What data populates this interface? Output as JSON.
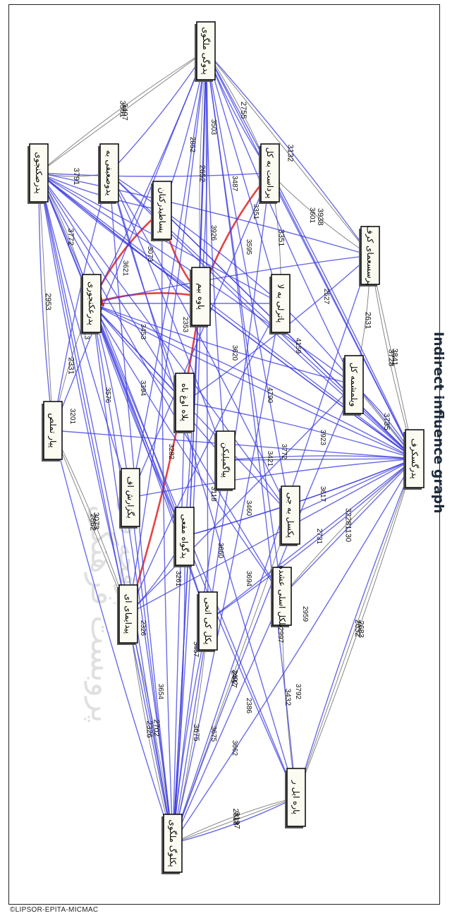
{
  "title": "Indirect influence graph",
  "copyright": "©LIPSOR-EPITA-MICMAC",
  "watermark_text": [
    "پروبست فرهنگی",
    "پرفحه فتی"
  ],
  "colors": {
    "strong_edge": "#3a3ae0",
    "weak_edge": "#6b6b6b",
    "critical_edge": "#e03030",
    "node_fill": "#fbfbf2",
    "node_border": "#111111"
  },
  "nodes": [
    {
      "id": "n1",
      "label": "پدوگی ملگوی"
    },
    {
      "id": "n2",
      "label": "پدرصکنجوی"
    },
    {
      "id": "n3",
      "label": "یدوصعبفی به"
    },
    {
      "id": "n4",
      "label": "پساطیدرکنان"
    },
    {
      "id": "n5",
      "label": "پرداست به کل"
    },
    {
      "id": "n6",
      "label": "پرسسعمای کرف"
    },
    {
      "id": "n7",
      "label": "پدرعکنجوری"
    },
    {
      "id": "n8",
      "label": "پاوه بیم"
    },
    {
      "id": "n9",
      "label": "پاترلی به لا"
    },
    {
      "id": "n10",
      "label": "پیار تملص"
    },
    {
      "id": "n11",
      "label": "پلاه اوغ باه"
    },
    {
      "id": "n12",
      "label": "ویلمشمه کل"
    },
    {
      "id": "n13",
      "label": "پدرگسکرف"
    },
    {
      "id": "n14",
      "label": "پیاگمیلیکن"
    },
    {
      "id": "n15",
      "label": "بگزارش اف"
    },
    {
      "id": "n16",
      "label": "پدگواه مفعی"
    },
    {
      "id": "n17",
      "label": "پکسل به جی"
    },
    {
      "id": "n18",
      "label": "بلکل اسلی عشده"
    },
    {
      "id": "n19",
      "label": "پیدایمای ای"
    },
    {
      "id": "n20",
      "label": "پکل کی اتحی"
    },
    {
      "id": "n21",
      "label": "پاره ایل ر"
    },
    {
      "id": "n22",
      "label": "پکلوگ ملگوی"
    }
  ],
  "edges": [
    {
      "from": "n2",
      "to": "n1",
      "label": "3501",
      "kind": "weak"
    },
    {
      "from": "n2",
      "to": "n1",
      "label": "3497",
      "kind": "weak"
    },
    {
      "from": "n2",
      "to": "n3",
      "label": "3791",
      "kind": "weak"
    },
    {
      "from": "n1",
      "to": "n5",
      "label": "2755",
      "kind": "weak"
    },
    {
      "from": "n1",
      "to": "n6",
      "label": "3132",
      "kind": "weak"
    },
    {
      "from": "n5",
      "to": "n6",
      "label": "3938",
      "kind": "weak"
    },
    {
      "from": "n5",
      "to": "n9",
      "label": "3351",
      "kind": "weak"
    },
    {
      "from": "n6",
      "to": "n13",
      "label": "3841",
      "kind": "weak"
    },
    {
      "from": "n6",
      "to": "n13",
      "label": "3728",
      "kind": "weak"
    },
    {
      "from": "n6",
      "to": "n12",
      "label": "2631",
      "kind": "weak"
    },
    {
      "from": "n12",
      "to": "n13",
      "label": "3735",
      "kind": "weak"
    },
    {
      "from": "n13",
      "to": "n18",
      "label": "32281130",
      "kind": "weak"
    },
    {
      "from": "n13",
      "to": "n21",
      "label": "2683",
      "kind": "weak"
    },
    {
      "from": "n13",
      "to": "n21",
      "label": "2632",
      "kind": "weak"
    },
    {
      "from": "n18",
      "to": "n21",
      "label": "3432",
      "kind": "weak"
    },
    {
      "from": "n2",
      "to": "n7",
      "label": "3772",
      "kind": "weak"
    },
    {
      "from": "n2",
      "to": "n10",
      "label": "2953",
      "kind": "weak"
    },
    {
      "from": "n7",
      "to": "n10",
      "label": "2331",
      "kind": "weak"
    },
    {
      "from": "n10",
      "to": "n19",
      "label": "3073",
      "kind": "weak"
    },
    {
      "from": "n10",
      "to": "n19",
      "label": "2862",
      "kind": "weak"
    },
    {
      "from": "n19",
      "to": "n22",
      "label": "2326",
      "kind": "weak"
    },
    {
      "from": "n19",
      "to": "n22",
      "label": "2702",
      "kind": "weak"
    },
    {
      "from": "n21",
      "to": "n22",
      "label": "3197",
      "kind": "weak"
    },
    {
      "from": "n21",
      "to": "n22",
      "label": "2818",
      "kind": "weak"
    },
    {
      "from": "n20",
      "to": "n22",
      "label": "3675",
      "kind": "weak"
    },
    {
      "from": "n17",
      "to": "n22",
      "label": "2417",
      "kind": "weak"
    },
    {
      "from": "n1",
      "to": "n8",
      "label": "2652",
      "kind": "weak"
    },
    {
      "from": "n5",
      "to": "n8",
      "label": "",
      "kind": "critical"
    },
    {
      "from": "n4",
      "to": "n8",
      "label": "",
      "kind": "critical"
    },
    {
      "from": "n8",
      "to": "n7",
      "label": "",
      "kind": "critical"
    },
    {
      "from": "n4",
      "to": "n7",
      "label": "",
      "kind": "critical"
    },
    {
      "from": "n19",
      "to": "n8",
      "label": "",
      "kind": "critical"
    },
    {
      "from": "n2",
      "to": "n8",
      "label": "",
      "kind": "strong"
    },
    {
      "from": "n3",
      "to": "n9",
      "label": "",
      "kind": "strong"
    },
    {
      "from": "n5",
      "to": "n15",
      "label": "",
      "kind": "strong"
    },
    {
      "from": "n6",
      "to": "n7",
      "label": "",
      "kind": "strong"
    },
    {
      "from": "n6",
      "to": "n11",
      "label": "",
      "kind": "strong"
    },
    {
      "from": "n12",
      "to": "n19",
      "label": "",
      "kind": "strong"
    },
    {
      "from": "n13",
      "to": "n7",
      "label": "",
      "kind": "strong"
    },
    {
      "from": "n13",
      "to": "n3",
      "label": "",
      "kind": "strong"
    },
    {
      "from": "n13",
      "to": "n4",
      "label": "",
      "kind": "strong"
    },
    {
      "from": "n13",
      "to": "n14",
      "label": "",
      "kind": "strong"
    },
    {
      "from": "n13",
      "to": "n16",
      "label": "",
      "kind": "strong"
    },
    {
      "from": "n13",
      "to": "n20",
      "label": "",
      "kind": "strong"
    },
    {
      "from": "n13",
      "to": "n1",
      "label": "",
      "kind": "strong"
    },
    {
      "from": "n13",
      "to": "n2",
      "label": "",
      "kind": "strong"
    },
    {
      "from": "n9",
      "to": "n7",
      "label": "",
      "kind": "strong"
    },
    {
      "from": "n9",
      "to": "n19",
      "label": "",
      "kind": "strong"
    },
    {
      "from": "n11",
      "to": "n3",
      "label": "",
      "kind": "strong"
    },
    {
      "from": "n11",
      "to": "n2",
      "label": "",
      "kind": "strong"
    },
    {
      "from": "n12",
      "to": "n2",
      "label": "",
      "kind": "strong"
    },
    {
      "from": "n12",
      "to": "n1",
      "label": "",
      "kind": "strong"
    },
    {
      "from": "n14",
      "to": "n7",
      "label": "",
      "kind": "strong"
    },
    {
      "from": "n14",
      "to": "n3",
      "label": "",
      "kind": "strong"
    },
    {
      "from": "n15",
      "to": "n2",
      "label": "",
      "kind": "strong"
    },
    {
      "from": "n15",
      "to": "n22",
      "label": "",
      "kind": "strong"
    },
    {
      "from": "n16",
      "to": "n1",
      "label": "",
      "kind": "strong"
    },
    {
      "from": "n16",
      "to": "n19",
      "label": "",
      "kind": "strong"
    },
    {
      "from": "n17",
      "to": "n2",
      "label": "",
      "kind": "strong"
    },
    {
      "from": "n17",
      "to": "n3",
      "label": "",
      "kind": "strong"
    },
    {
      "from": "n18",
      "to": "n7",
      "label": "",
      "kind": "strong"
    },
    {
      "from": "n18",
      "to": "n1",
      "label": "",
      "kind": "strong"
    },
    {
      "from": "n19",
      "to": "n1",
      "label": "",
      "kind": "strong"
    },
    {
      "from": "n19",
      "to": "n2",
      "label": "",
      "kind": "strong"
    },
    {
      "from": "n20",
      "to": "n1",
      "label": "",
      "kind": "strong"
    },
    {
      "from": "n20",
      "to": "n7",
      "label": "",
      "kind": "strong"
    },
    {
      "from": "n21",
      "to": "n7",
      "label": "",
      "kind": "strong"
    },
    {
      "from": "n21",
      "to": "n3",
      "label": "",
      "kind": "strong"
    },
    {
      "from": "n21",
      "to": "n1",
      "label": "",
      "kind": "strong"
    },
    {
      "from": "n22",
      "to": "n7",
      "label": "",
      "kind": "strong"
    },
    {
      "from": "n22",
      "to": "n2",
      "label": "",
      "kind": "strong"
    },
    {
      "from": "n22",
      "to": "n1",
      "label": "",
      "kind": "strong"
    },
    {
      "from": "n10",
      "to": "n3",
      "label": "",
      "kind": "strong"
    },
    {
      "from": "n10",
      "to": "n1",
      "label": "",
      "kind": "strong"
    },
    {
      "from": "n8",
      "to": "n1",
      "label": "",
      "kind": "strong"
    },
    {
      "from": "n8",
      "to": "n22",
      "label": "",
      "kind": "strong"
    },
    {
      "from": "n8",
      "to": "n13",
      "label": "",
      "kind": "strong"
    },
    {
      "from": "n7",
      "to": "n13",
      "label": "",
      "kind": "strong"
    },
    {
      "from": "n7",
      "to": "n22",
      "label": "",
      "kind": "strong"
    },
    {
      "from": "n3",
      "to": "n13",
      "label": "",
      "kind": "strong"
    },
    {
      "from": "n3",
      "to": "n22",
      "label": "",
      "kind": "strong"
    },
    {
      "from": "n1",
      "to": "n22",
      "label": "",
      "kind": "strong"
    },
    {
      "from": "n1",
      "to": "n13",
      "label": "",
      "kind": "strong"
    },
    {
      "from": "n2",
      "to": "n13",
      "label": "",
      "kind": "strong"
    },
    {
      "from": "n2",
      "to": "n22",
      "label": "",
      "kind": "strong"
    },
    {
      "from": "n4",
      "to": "n13",
      "label": "",
      "kind": "strong"
    },
    {
      "from": "n4",
      "to": "n22",
      "label": "",
      "kind": "strong"
    },
    {
      "from": "n5",
      "to": "n22",
      "label": "",
      "kind": "strong"
    },
    {
      "from": "n6",
      "to": "n22",
      "label": "",
      "kind": "strong"
    },
    {
      "from": "n6",
      "to": "n1",
      "label": "",
      "kind": "strong"
    },
    {
      "from": "n9",
      "to": "n22",
      "label": "",
      "kind": "strong"
    },
    {
      "from": "n11",
      "to": "n22",
      "label": "",
      "kind": "strong"
    },
    {
      "from": "n14",
      "to": "n22",
      "label": "",
      "kind": "strong"
    },
    {
      "from": "n16",
      "to": "n22",
      "label": "",
      "kind": "strong"
    },
    {
      "from": "n18",
      "to": "n22",
      "label": "",
      "kind": "strong"
    },
    {
      "from": "n20",
      "to": "n13",
      "label": "",
      "kind": "strong"
    },
    {
      "from": "n21",
      "to": "n13",
      "label": "",
      "kind": "strong"
    },
    {
      "from": "n17",
      "to": "n13",
      "label": "",
      "kind": "strong"
    },
    {
      "from": "n12",
      "to": "n22",
      "label": "",
      "kind": "strong"
    },
    {
      "from": "n15",
      "to": "n13",
      "label": "",
      "kind": "strong"
    },
    {
      "from": "n10",
      "to": "n13",
      "label": "",
      "kind": "strong"
    },
    {
      "from": "n10",
      "to": "n22",
      "label": "",
      "kind": "strong"
    },
    {
      "from": "n5",
      "to": "n1",
      "label": "",
      "kind": "strong"
    },
    {
      "from": "n5",
      "to": "n13",
      "label": "",
      "kind": "strong"
    },
    {
      "from": "n4",
      "to": "n1",
      "label": "",
      "kind": "strong"
    },
    {
      "from": "n11",
      "to": "n13",
      "label": "",
      "kind": "strong"
    },
    {
      "from": "n14",
      "to": "n13",
      "label": "",
      "kind": "strong"
    },
    {
      "from": "n16",
      "to": "n13",
      "label": "",
      "kind": "strong"
    },
    {
      "from": "n9",
      "to": "n13",
      "label": "",
      "kind": "strong"
    },
    {
      "from": "n9",
      "to": "n1",
      "label": "",
      "kind": "strong"
    },
    {
      "from": "n20",
      "to": "n2",
      "label": "",
      "kind": "strong"
    },
    {
      "from": "n18",
      "to": "n2",
      "label": "",
      "kind": "strong"
    },
    {
      "from": "n21",
      "to": "n2",
      "label": "",
      "kind": "strong"
    },
    {
      "from": "n16",
      "to": "n2",
      "label": "",
      "kind": "strong"
    },
    {
      "from": "n14",
      "to": "n1",
      "label": "",
      "kind": "strong"
    },
    {
      "from": "n17",
      "to": "n1",
      "label": "",
      "kind": "strong"
    },
    {
      "from": "n15",
      "to": "n1",
      "label": "",
      "kind": "strong"
    },
    {
      "from": "n12",
      "to": "n7",
      "label": "",
      "kind": "strong"
    },
    {
      "from": "n11",
      "to": "n7",
      "label": "",
      "kind": "strong"
    },
    {
      "from": "n15",
      "to": "n7",
      "label": "",
      "kind": "strong"
    },
    {
      "from": "n16",
      "to": "n7",
      "label": "",
      "kind": "strong"
    },
    {
      "from": "n17",
      "to": "n7",
      "label": "",
      "kind": "strong"
    },
    {
      "from": "n6",
      "to": "n2",
      "label": "",
      "kind": "strong"
    },
    {
      "from": "n5",
      "to": "n2",
      "label": "",
      "kind": "strong"
    },
    {
      "from": "n9",
      "to": "n2",
      "label": "",
      "kind": "strong"
    },
    {
      "from": "n3",
      "to": "n1",
      "label": "",
      "kind": "strong"
    },
    {
      "from": "n4",
      "to": "n2",
      "label": "",
      "kind": "strong"
    },
    {
      "from": "n8",
      "to": "n2",
      "label": "",
      "kind": "strong"
    },
    {
      "from": "n7",
      "to": "n1",
      "label": "",
      "kind": "strong"
    },
    {
      "from": "n10",
      "to": "n2",
      "label": "",
      "kind": "strong"
    },
    {
      "from": "n19",
      "to": "n13",
      "label": "",
      "kind": "strong"
    },
    {
      "from": "n22",
      "to": "n13",
      "label": "",
      "kind": "strong"
    },
    {
      "from": "n12",
      "to": "n13",
      "label": "",
      "kind": "strong"
    },
    {
      "from": "n18",
      "to": "n13",
      "label": "",
      "kind": "strong"
    },
    {
      "from": "n20",
      "to": "n22",
      "label": "",
      "kind": "strong"
    },
    {
      "from": "n21",
      "to": "n22",
      "label": "",
      "kind": "strong"
    }
  ],
  "inner_labels": [
    "2852",
    "3503",
    "3487",
    "3351",
    "3601",
    "2527",
    "3926",
    "3595",
    "3073",
    "3621",
    "4159",
    "3923",
    "3617",
    "2731",
    "3261",
    "2326",
    "3654",
    "3457",
    "2492",
    "2386",
    "3662",
    "3675",
    "3792",
    "2997",
    "3460",
    "3118",
    "3282",
    "3394",
    "3576",
    "3201",
    "2813",
    "3620",
    "4790",
    "3772",
    "3694",
    "2959",
    "2353",
    "3453",
    "3421",
    "3660"
  ]
}
